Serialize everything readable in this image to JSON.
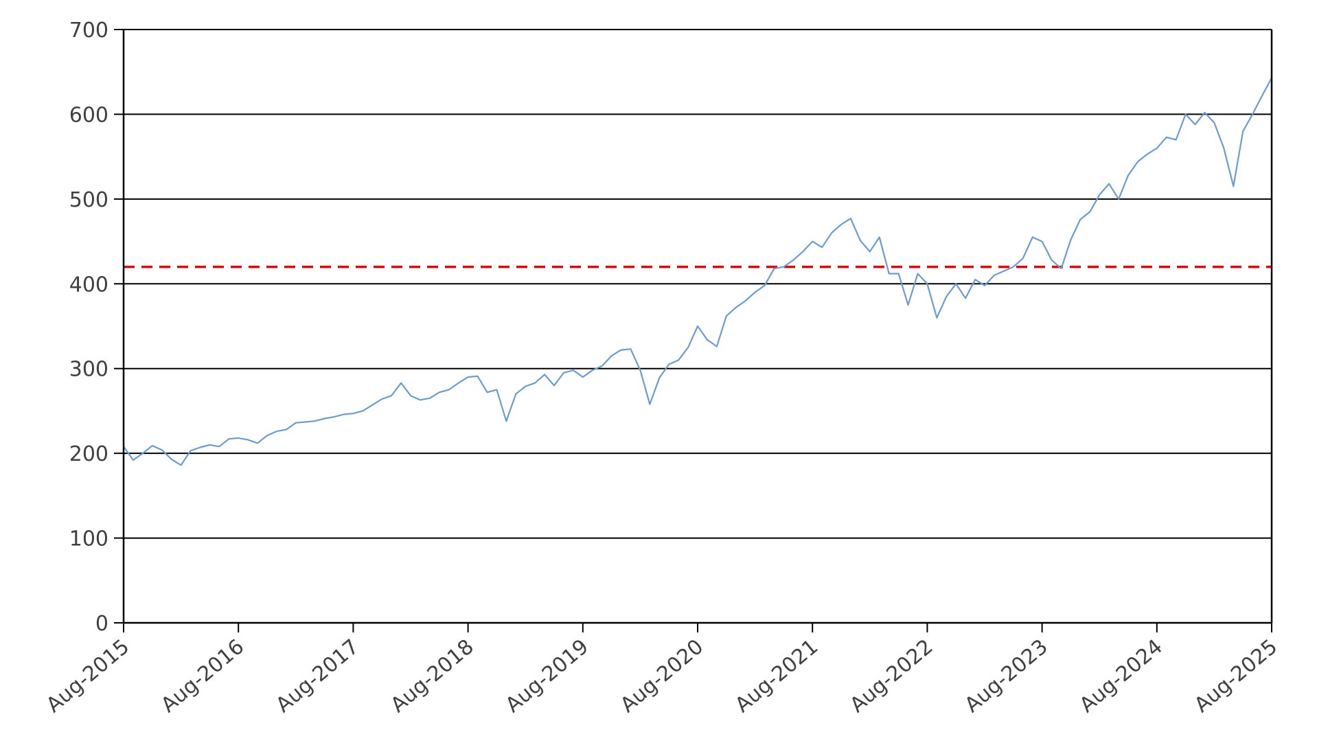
{
  "chart_data": {
    "type": "line",
    "title": "",
    "xlabel": "",
    "ylabel": "",
    "x_tick_labels": [
      "Aug-2015",
      "Aug-2016",
      "Aug-2017",
      "Aug-2018",
      "Aug-2019",
      "Aug-2020",
      "Aug-2021",
      "Aug-2022",
      "Aug-2023",
      "Aug-2024",
      "Aug-2025"
    ],
    "y_tick_labels": [
      "0",
      "100",
      "200",
      "300",
      "400",
      "500",
      "600",
      "700"
    ],
    "xlim": [
      "2015-08",
      "2025-08"
    ],
    "ylim": [
      0,
      700
    ],
    "grid": "horizontal",
    "legend": "none",
    "series": [
      {
        "color": "#6a9bd1",
        "x": [
          "2015-08",
          "2015-09",
          "2015-10",
          "2015-11",
          "2015-12",
          "2016-01",
          "2016-02",
          "2016-03",
          "2016-04",
          "2016-05",
          "2016-06",
          "2016-07",
          "2016-08",
          "2016-09",
          "2016-10",
          "2016-11",
          "2016-12",
          "2017-01",
          "2017-02",
          "2017-03",
          "2017-04",
          "2017-05",
          "2017-06",
          "2017-07",
          "2017-08",
          "2017-09",
          "2017-10",
          "2017-11",
          "2017-12",
          "2018-01",
          "2018-02",
          "2018-03",
          "2018-04",
          "2018-05",
          "2018-06",
          "2018-07",
          "2018-08",
          "2018-09",
          "2018-10",
          "2018-11",
          "2018-12",
          "2019-01",
          "2019-02",
          "2019-03",
          "2019-04",
          "2019-05",
          "2019-06",
          "2019-07",
          "2019-08",
          "2019-09",
          "2019-10",
          "2019-11",
          "2019-12",
          "2020-01",
          "2020-02",
          "2020-03",
          "2020-04",
          "2020-05",
          "2020-06",
          "2020-07",
          "2020-08",
          "2020-09",
          "2020-10",
          "2020-11",
          "2020-12",
          "2021-01",
          "2021-02",
          "2021-03",
          "2021-04",
          "2021-05",
          "2021-06",
          "2021-07",
          "2021-08",
          "2021-09",
          "2021-10",
          "2021-11",
          "2021-12",
          "2022-01",
          "2022-02",
          "2022-03",
          "2022-04",
          "2022-05",
          "2022-06",
          "2022-07",
          "2022-08",
          "2022-09",
          "2022-10",
          "2022-11",
          "2022-12",
          "2023-01",
          "2023-02",
          "2023-03",
          "2023-04",
          "2023-05",
          "2023-06",
          "2023-07",
          "2023-08",
          "2023-09",
          "2023-10",
          "2023-11",
          "2023-12",
          "2024-01",
          "2024-02",
          "2024-03",
          "2024-04",
          "2024-05",
          "2024-06",
          "2024-07",
          "2024-08",
          "2024-09",
          "2024-10",
          "2024-11",
          "2024-12",
          "2025-01",
          "2025-02",
          "2025-03",
          "2025-04",
          "2025-05",
          "2025-06",
          "2025-07",
          "2025-08"
        ],
        "values": [
          208,
          192,
          200,
          209,
          204,
          193,
          186,
          203,
          207,
          210,
          208,
          217,
          218,
          216,
          212,
          221,
          226,
          228,
          236,
          237,
          238,
          241,
          243,
          246,
          247,
          250,
          257,
          264,
          268,
          283,
          268,
          263,
          265,
          272,
          275,
          283,
          290,
          291,
          272,
          275,
          238,
          270,
          279,
          283,
          293,
          280,
          295,
          298,
          290,
          298,
          303,
          315,
          322,
          323,
          298,
          258,
          289,
          305,
          310,
          325,
          350,
          334,
          326,
          362,
          372,
          380,
          390,
          398,
          418,
          420,
          428,
          438,
          450,
          443,
          460,
          470,
          477,
          451,
          438,
          455,
          412,
          412,
          375,
          412,
          400,
          360,
          385,
          400,
          383,
          405,
          398,
          410,
          415,
          420,
          430,
          455,
          450,
          428,
          418,
          452,
          476,
          485,
          505,
          518,
          500,
          528,
          544,
          553,
          560,
          573,
          570,
          600,
          588,
          602,
          590,
          560,
          515,
          580,
          600,
          622,
          643
        ]
      }
    ],
    "reference_lines": [
      {
        "y": 420,
        "color": "#e00000",
        "style": "dashed"
      }
    ]
  }
}
